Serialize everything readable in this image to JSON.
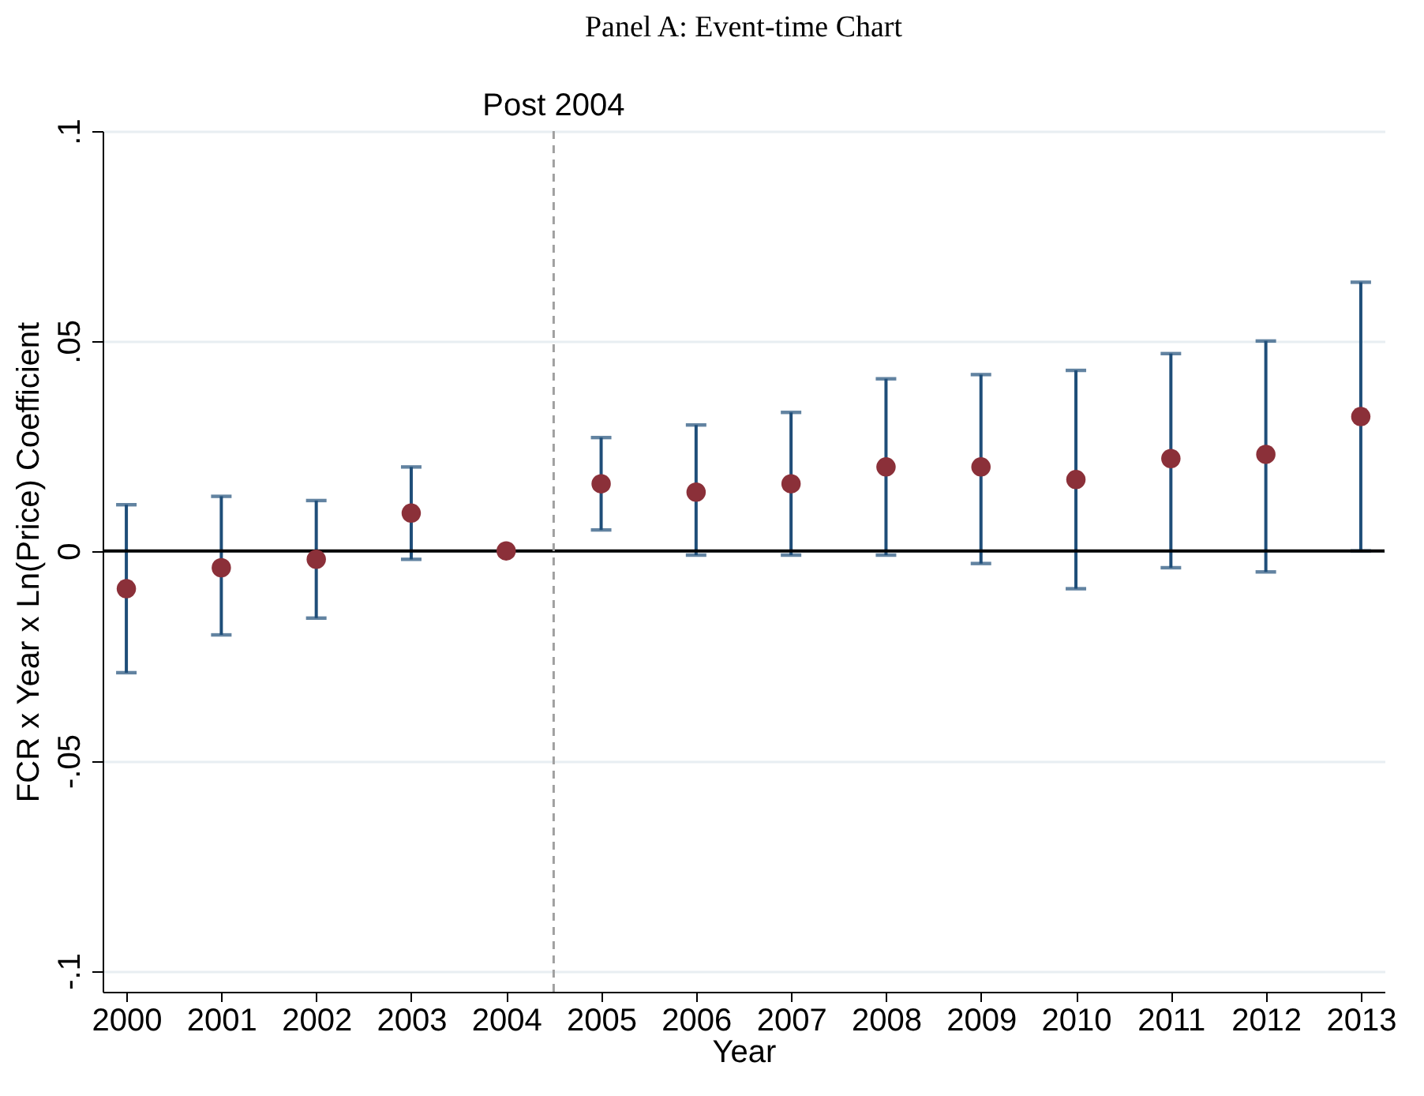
{
  "chart_data": {
    "type": "scatter",
    "title": "Panel A: Event-time Chart",
    "xlabel": "Year",
    "ylabel": "FCR x Year x Ln(Price) Coefficient",
    "x": [
      2000,
      2001,
      2002,
      2003,
      2004,
      2005,
      2006,
      2007,
      2008,
      2009,
      2010,
      2011,
      2012,
      2013
    ],
    "series": [
      {
        "color": "#8b3039",
        "values": [
          -0.009,
          -0.004,
          -0.002,
          0.009,
          0,
          0.016,
          0.014,
          0.016,
          0.02,
          0.02,
          0.017,
          0.022,
          0.023,
          0.032
        ],
        "errors": [
          [
            -0.029,
            0.011
          ],
          [
            -0.02,
            0.013
          ],
          [
            -0.016,
            0.012
          ],
          [
            -0.002,
            0.02
          ],
          null,
          [
            0.005,
            0.027
          ],
          [
            -0.001,
            0.03
          ],
          [
            -0.001,
            0.033
          ],
          [
            -0.001,
            0.041
          ],
          [
            -0.003,
            0.042
          ],
          [
            -0.009,
            0.043
          ],
          [
            -0.004,
            0.047
          ],
          [
            -0.005,
            0.05
          ],
          [
            0,
            0.064
          ]
        ]
      }
    ],
    "xlim": [
      1999.75,
      2013.25
    ],
    "xticks": [
      2000,
      2001,
      2002,
      2003,
      2004,
      2005,
      2006,
      2007,
      2008,
      2009,
      2010,
      2011,
      2012,
      2013
    ],
    "ylim": [
      -0.105,
      0.1
    ],
    "yticks": [
      {
        "value": -0.1,
        "label": "-.1"
      },
      {
        "value": -0.05,
        "label": "-.05"
      },
      0,
      {
        "value": 0.05,
        "label": ".05"
      },
      {
        "value": 0.1,
        "label": ".1"
      }
    ],
    "grid": "y",
    "marker": "circle",
    "ref_lines": [
      {
        "axis": "y",
        "value": 0,
        "color": "#000000",
        "line_style": "solid"
      },
      {
        "axis": "x",
        "value": 2004.5,
        "label": "Post 2004",
        "color": "#a0a0a0",
        "line_style": "dashed"
      }
    ]
  }
}
